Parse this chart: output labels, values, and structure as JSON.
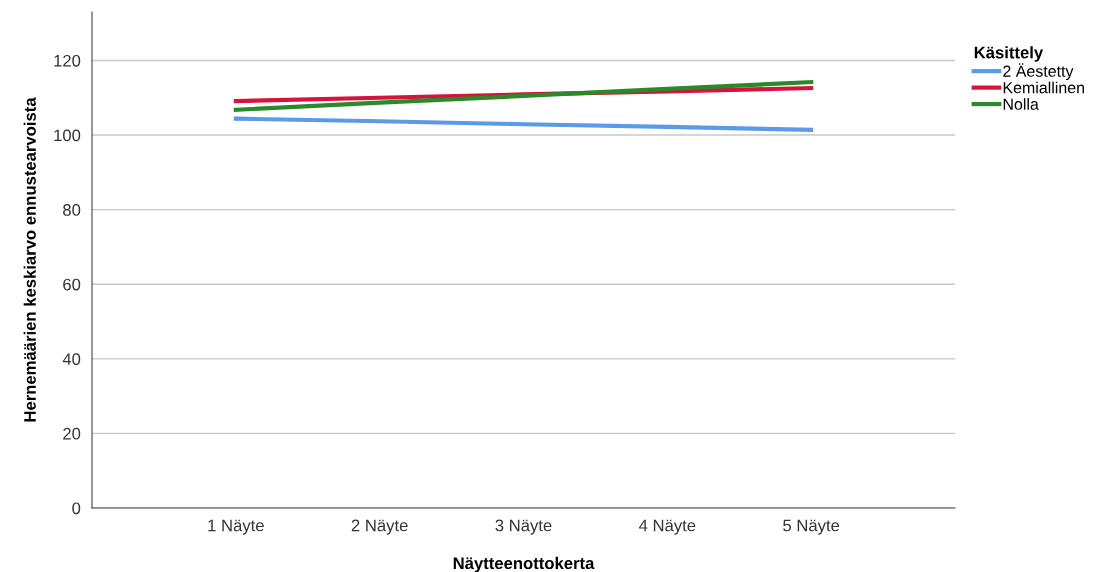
{
  "chart_data": {
    "type": "line",
    "xlabel": "Näytteenottokerta",
    "ylabel": "Hernemäärien keskiarvo ennustearvoista",
    "legend_title": "Käsittely",
    "categories": [
      "1 Näyte",
      "2 Näyte",
      "3 Näyte",
      "4 Näyte",
      "5 Näyte"
    ],
    "series": [
      {
        "name": "2 Äestetty",
        "color": "#5a9ae6",
        "values": [
          104.4,
          103.7,
          102.9,
          102.2,
          101.4
        ]
      },
      {
        "name": "Kemiallinen",
        "color": "#d7123c",
        "values": [
          109.1,
          110.0,
          110.9,
          111.7,
          112.6
        ]
      },
      {
        "name": "Nolla",
        "color": "#2a8a2a",
        "values": [
          106.8,
          108.7,
          110.5,
          112.4,
          114.2
        ]
      }
    ],
    "ylim": [
      0,
      133
    ],
    "yticks": [
      0,
      20,
      40,
      60,
      80,
      100,
      120
    ],
    "grid": "y",
    "legend": "top right",
    "marker": "none",
    "line_style": "solid"
  }
}
